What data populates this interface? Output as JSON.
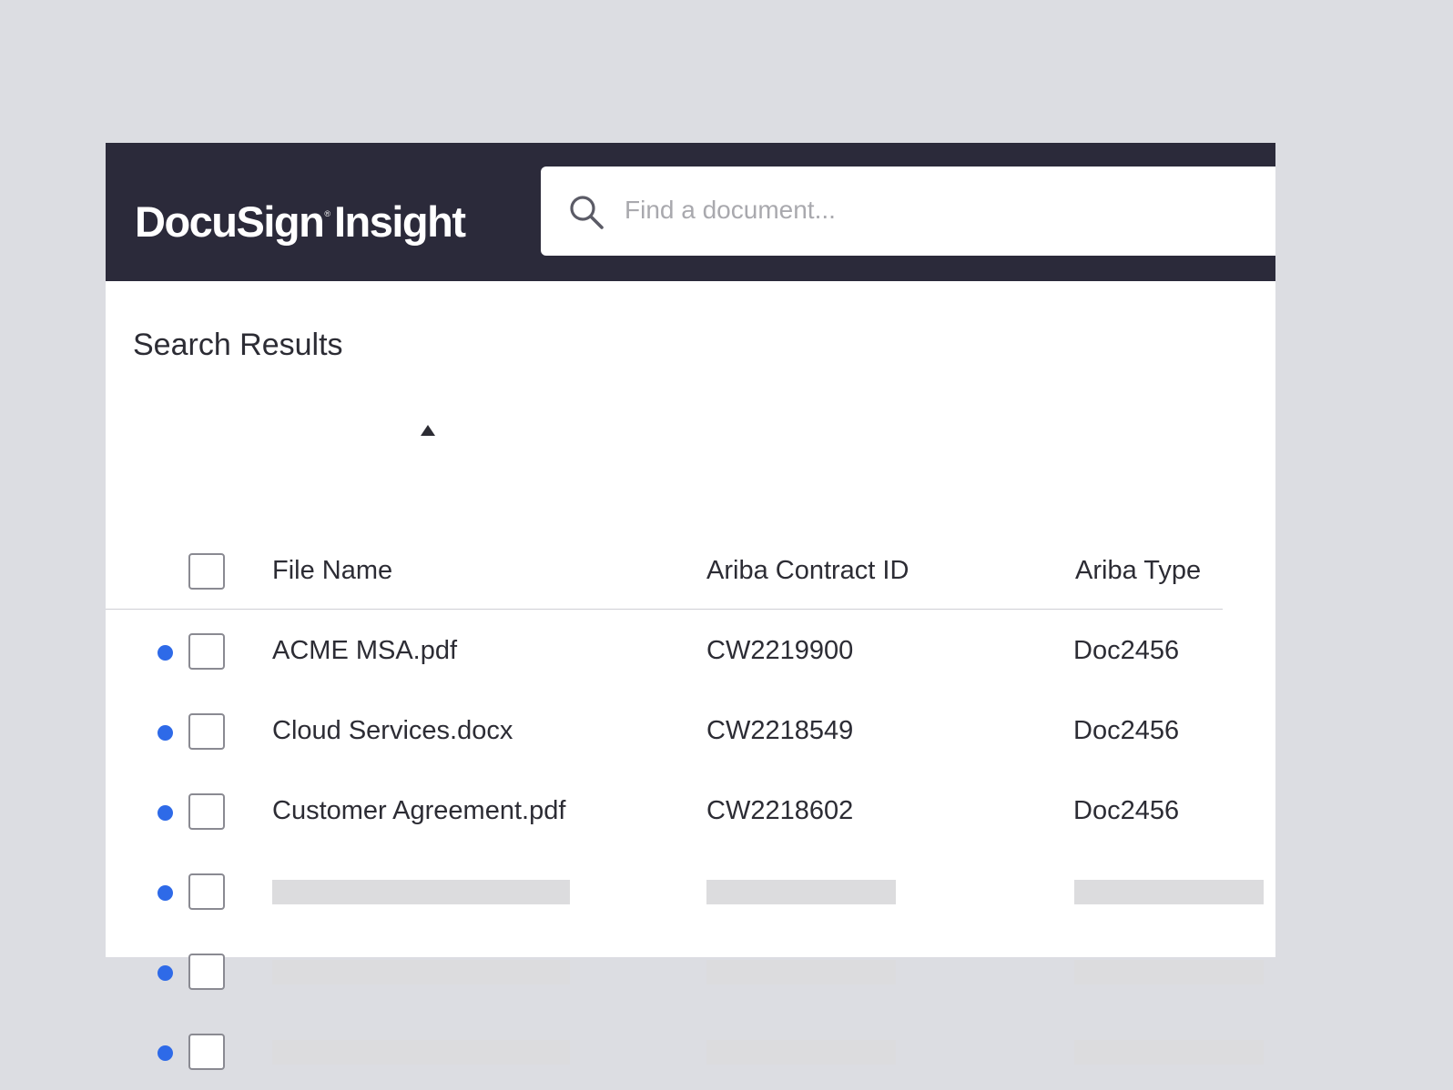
{
  "app": {
    "logo_main": "DocuSign",
    "logo_mark": "®",
    "logo_product": "Insight"
  },
  "search": {
    "placeholder": "Find a document...",
    "icon": "search-icon"
  },
  "results": {
    "title": "Search Results",
    "columns": {
      "file_name": "File Name",
      "contract_id": "Ariba Contract ID",
      "type": "Ariba Type"
    },
    "sort": {
      "column": "File Name",
      "direction": "ascending"
    },
    "rows": [
      {
        "file_name": "ACME MSA.pdf",
        "contract_id": "CW2219900",
        "type": "Doc2456"
      },
      {
        "file_name": "Cloud Services.docx",
        "contract_id": "CW2218549",
        "type": "Doc2456"
      },
      {
        "file_name": "Customer Agreement.pdf",
        "contract_id": "CW2218602",
        "type": "Doc2456"
      }
    ],
    "loading_rows": 3
  },
  "colors": {
    "header_bg": "#2b2a3a",
    "page_bg": "#dcdde2",
    "status_dot": "#2e6ae8",
    "placeholder": "#dcdcde"
  }
}
